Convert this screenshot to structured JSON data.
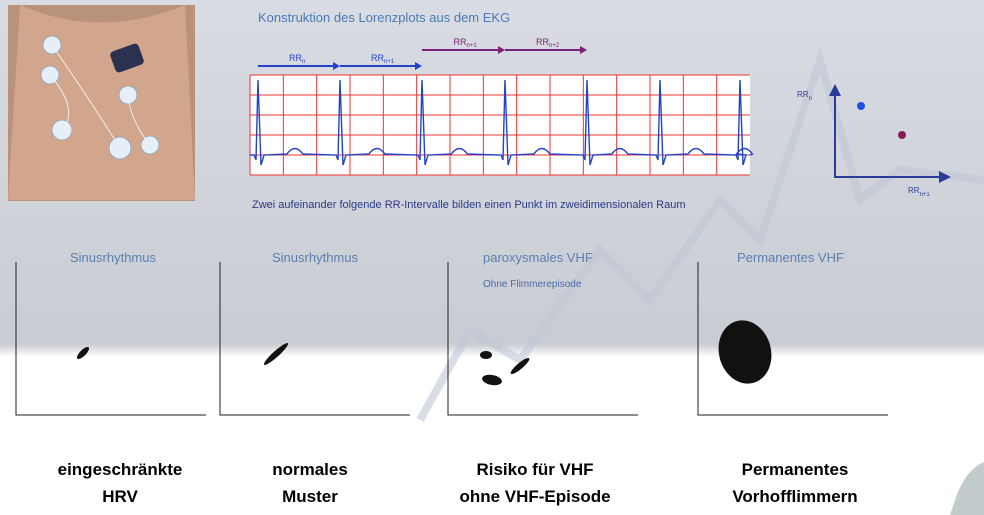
{
  "header": {
    "title": "Konstruktion des Lorenzplots aus dem EKG"
  },
  "intervals": [
    {
      "base": "RR",
      "sub": "n"
    },
    {
      "base": "RR",
      "sub": "n+1"
    },
    {
      "base": "RR",
      "sub": "n+1"
    },
    {
      "base": "RR",
      "sub": "n+2"
    }
  ],
  "caption": "Zwei aufeinander folgende RR-Intervalle bilden einen Punkt im zweidimensionalen Raum",
  "lorenz_axes": {
    "y": {
      "base": "RR",
      "sub": "n"
    },
    "x": {
      "base": "RR",
      "sub": "n+1"
    }
  },
  "panels": [
    {
      "title": "Sinusrhythmus",
      "caption": [
        "eingeschränkte",
        "HRV"
      ]
    },
    {
      "title": "Sinusrhythmus",
      "caption": [
        "normales",
        "Muster"
      ]
    },
    {
      "title": "paroxysmales VHF",
      "subtitle": "Ohne Flimmerepisode",
      "caption": [
        "Risiko für VHF",
        "ohne VHF-Episode"
      ]
    },
    {
      "title": "Permanentes VHF",
      "caption": [
        "Permanentes",
        "Vorhofflimmern"
      ]
    }
  ]
}
